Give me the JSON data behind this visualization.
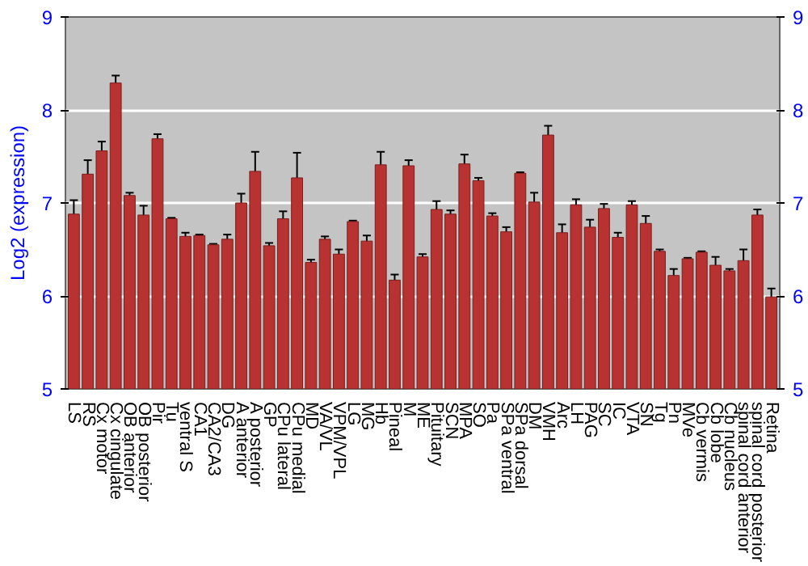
{
  "chart_data": {
    "type": "bar",
    "ylabel": "Log2 (expression)",
    "categories": [
      "LS",
      "RS",
      "Cx motor",
      "Cx cingulate",
      "OB anterior",
      "OB posterior",
      "Pir",
      "Tu",
      "ventral S",
      "CA1",
      "CA2/CA3",
      "DG",
      "A anterior",
      "A posterior",
      "GP",
      "CPu lateral",
      "CPu medial",
      "MD",
      "VA/VL",
      "VPM/VPL",
      "LG",
      "MG",
      "Hb",
      "Pineal",
      "M",
      "ME",
      "Pituitary",
      "SCN",
      "MPA",
      "SO",
      "Pa",
      "SPa ventral",
      "SPa dorsal",
      "DM",
      "VMH",
      "Arc",
      "LH",
      "PAG",
      "SC",
      "IC",
      "VTA",
      "SN",
      "Tg",
      "Pn",
      "MVe",
      "Cb vermis",
      "Cb lobe",
      "Cb nucleus",
      "spinal cord anterior",
      "spinal cord posterior",
      "Retina"
    ],
    "values": [
      6.88,
      7.31,
      7.56,
      8.29,
      7.08,
      6.87,
      7.69,
      6.83,
      6.64,
      6.65,
      6.55,
      6.61,
      7.0,
      7.34,
      6.54,
      6.83,
      7.27,
      6.36,
      6.61,
      6.45,
      6.8,
      6.59,
      7.41,
      6.17,
      7.4,
      6.42,
      6.93,
      6.88,
      7.42,
      7.24,
      6.86,
      6.69,
      7.32,
      7.01,
      7.73,
      6.68,
      6.98,
      6.74,
      6.94,
      6.63,
      6.98,
      6.78,
      6.48,
      6.22,
      6.4,
      6.47,
      6.33,
      6.27,
      6.38,
      6.87,
      5.99
    ],
    "errors": [
      0.15,
      0.15,
      0.1,
      0.08,
      0.03,
      0.1,
      0.05,
      0.01,
      0.04,
      0.01,
      0.01,
      0.05,
      0.1,
      0.21,
      0.03,
      0.08,
      0.27,
      0.03,
      0.03,
      0.05,
      0.01,
      0.06,
      0.14,
      0.06,
      0.06,
      0.03,
      0.09,
      0.04,
      0.1,
      0.03,
      0.03,
      0.05,
      0.01,
      0.1,
      0.1,
      0.09,
      0.06,
      0.08,
      0.05,
      0.05,
      0.04,
      0.08,
      0.02,
      0.07,
      0.01,
      0.01,
      0.09,
      0.02,
      0.12,
      0.06,
      0.09
    ],
    "color": "#b83232",
    "ylim": [
      5,
      9
    ],
    "yticks": [
      5,
      6,
      7,
      8,
      9
    ],
    "y2lim": [
      5,
      9
    ],
    "y2ticks": [
      5,
      6,
      7,
      8,
      9
    ],
    "grid": "y"
  }
}
